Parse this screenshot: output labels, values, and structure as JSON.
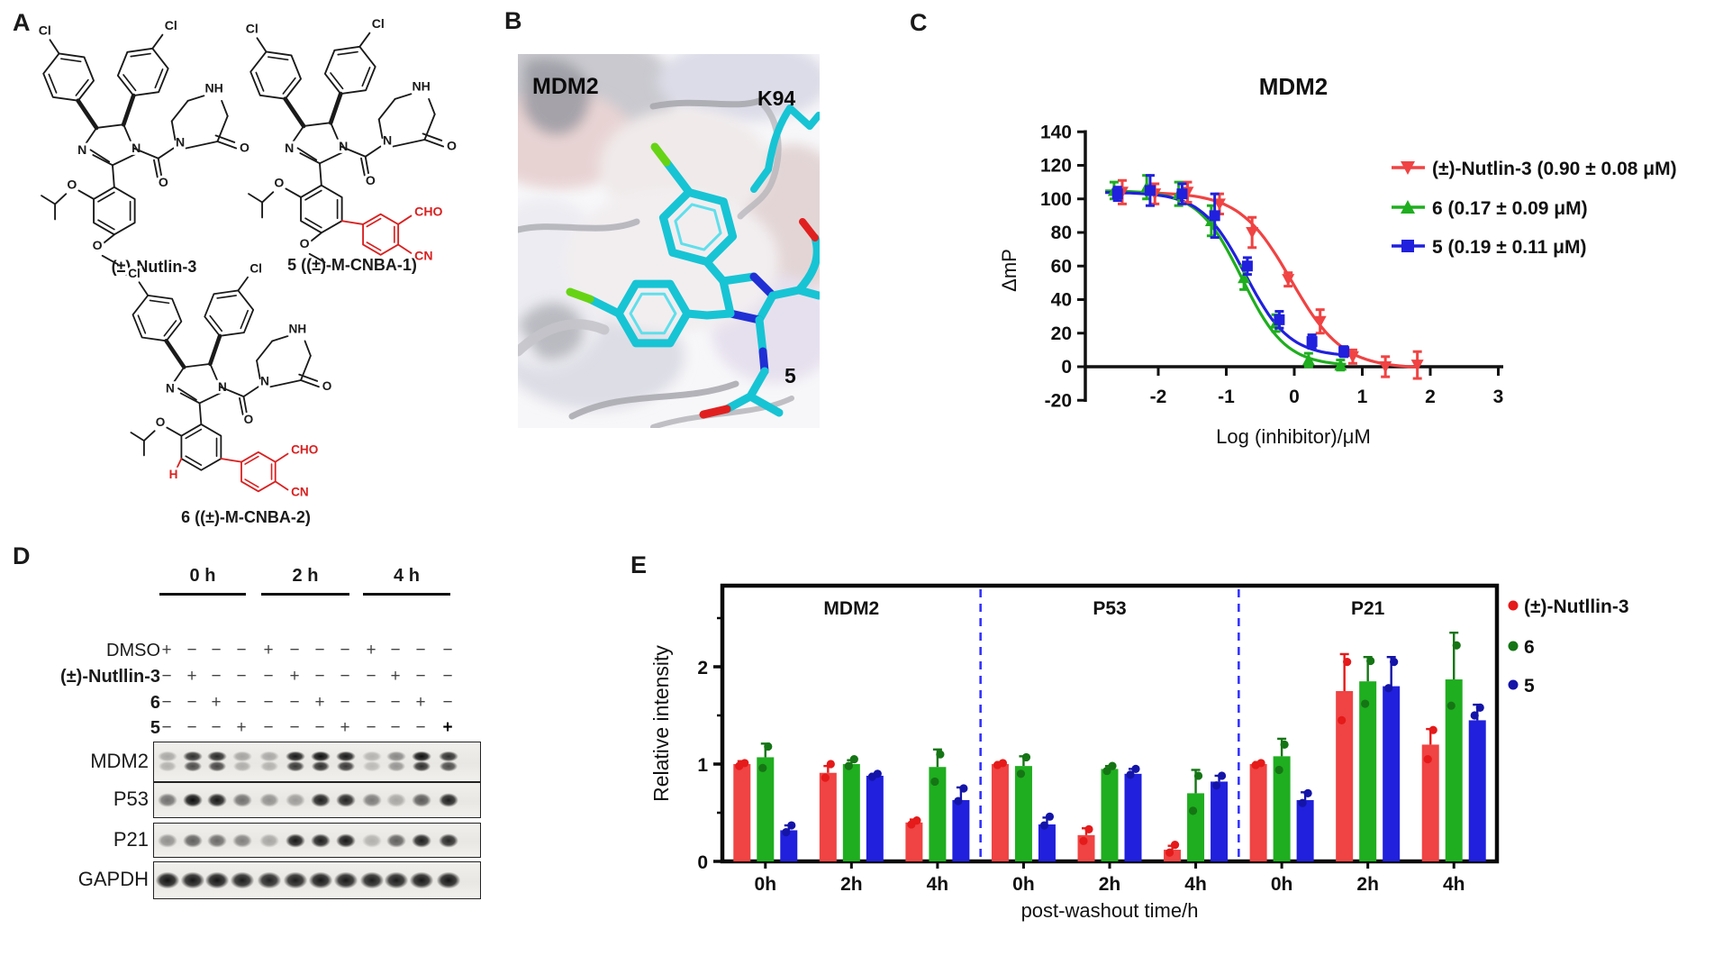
{
  "panel_labels": {
    "a": "A",
    "b": "B",
    "c": "C",
    "d": "D",
    "e": "E"
  },
  "panel_a": {
    "structures": [
      {
        "name": "(±)-Nutlin-3",
        "has_methoxy": true,
        "has_red_ring": false,
        "has_red_h": false
      },
      {
        "name": "5 ((±)-M-CNBA-1)",
        "has_methoxy": true,
        "has_red_ring": true,
        "has_red_h": false
      },
      {
        "name": "6 ((±)-M-CNBA-2)",
        "has_methoxy": false,
        "has_red_ring": true,
        "has_red_h": true
      }
    ],
    "atoms": {
      "cl": "Cl",
      "nh": "NH",
      "n": "N",
      "o": "O",
      "cho": "CHO",
      "cn": "CN",
      "h": "H"
    },
    "bond_color": "#1a1a1a",
    "red_color": "#D92121"
  },
  "panel_b": {
    "protein_label": "MDM2",
    "residue_label": "K94",
    "ligand_label": "5",
    "ligand_color": "#17c4d4",
    "chlorine_color": "#66d414",
    "nitrogen_color": "#1f2fd4",
    "oxygen_color": "#e02020"
  },
  "panel_d": {
    "time_groups": [
      "0 h",
      "2 h",
      "4 h"
    ],
    "treatments": [
      {
        "label": "DMSO",
        "bold": false,
        "lanes": [
          "+",
          "−",
          "−",
          "−",
          "+",
          "−",
          "−",
          "−",
          "+",
          "−",
          "−",
          "−"
        ]
      },
      {
        "label": "(±)-Nutllin-3",
        "bold": true,
        "lanes": [
          "−",
          "+",
          "−",
          "−",
          "−",
          "+",
          "−",
          "−",
          "−",
          "+",
          "−",
          "−"
        ]
      },
      {
        "label": "6",
        "bold": true,
        "lanes": [
          "−",
          "−",
          "+",
          "−",
          "−",
          "−",
          "+",
          "−",
          "−",
          "−",
          "+",
          "−"
        ]
      },
      {
        "label": "5",
        "bold": true,
        "lanes": [
          "−",
          "−",
          "−",
          "+",
          "−",
          "−",
          "−",
          "+",
          "−",
          "−",
          "−",
          "+"
        ]
      }
    ],
    "blots": [
      {
        "label": "MDM2",
        "double_band": true,
        "intensities": [
          0.3,
          0.85,
          0.88,
          0.32,
          0.3,
          0.95,
          1.0,
          0.95,
          0.25,
          0.45,
          1.0,
          0.85
        ]
      },
      {
        "label": "P53",
        "double_band": false,
        "intensities": [
          0.55,
          1.0,
          0.95,
          0.55,
          0.4,
          0.35,
          0.92,
          0.9,
          0.5,
          0.3,
          0.65,
          0.92
        ]
      },
      {
        "label": "P21",
        "double_band": false,
        "intensities": [
          0.4,
          0.62,
          0.58,
          0.48,
          0.3,
          0.95,
          0.93,
          0.95,
          0.25,
          0.62,
          0.92,
          0.88
        ]
      },
      {
        "label": "GAPDH",
        "double_band": false,
        "intensities": [
          0.97,
          0.95,
          0.96,
          0.93,
          0.9,
          0.92,
          0.95,
          0.94,
          0.92,
          0.93,
          0.95,
          0.96
        ]
      }
    ]
  },
  "chart_data": [
    {
      "panel": "C",
      "type": "line",
      "title": "MDM2",
      "xlabel": "Log (inhibitor)/μM",
      "ylabel": "ΔmP",
      "xlim": [
        -3.05,
        3.05
      ],
      "ylim": [
        -20,
        140
      ],
      "xticks": [
        -2,
        -1,
        0,
        1,
        2,
        3
      ],
      "yticks": [
        -20,
        0,
        20,
        40,
        60,
        80,
        100,
        120,
        140
      ],
      "grid": false,
      "legend_position": "right",
      "series": [
        {
          "name": "(±)-Nutlin-3 (0.90 ± 0.08 μM)",
          "color": "#F04343",
          "marker": "triangle-down",
          "x": [
            -2.53,
            -2.05,
            -1.57,
            -1.1,
            -0.62,
            -0.09,
            0.38,
            0.86,
            1.34,
            1.81
          ],
          "y": [
            104,
            103,
            104,
            97,
            80,
            52,
            27,
            6,
            0,
            1
          ],
          "err": [
            7,
            6,
            6,
            6,
            9,
            4,
            7,
            4,
            6,
            8
          ],
          "fit": {
            "top": 104,
            "bottom": -1,
            "logIC50": -0.046,
            "hill": 1.15,
            "xend": 1.9
          }
        },
        {
          "name": "6 (0.17 ± 0.09 μM)",
          "color": "#1FAE1F",
          "marker": "triangle-up",
          "x": [
            -2.65,
            -2.17,
            -1.7,
            -1.22,
            -0.74,
            -0.27,
            0.21,
            0.68
          ],
          "y": [
            105,
            107,
            103,
            87,
            53,
            26,
            4,
            1
          ],
          "err": [
            5,
            7,
            7,
            9,
            7,
            5,
            4,
            3
          ],
          "fit": {
            "top": 105,
            "bottom": 0.5,
            "logIC50": -0.77,
            "hill": 1.35,
            "xend": 0.8
          }
        },
        {
          "name": "5 (0.19 ± 0.11 μM)",
          "color": "#2020DD",
          "marker": "square",
          "x": [
            -2.6,
            -2.12,
            -1.65,
            -1.17,
            -0.69,
            -0.22,
            0.26,
            0.73
          ],
          "y": [
            103,
            105,
            103,
            90,
            60,
            28,
            15,
            9
          ],
          "err": [
            4,
            9,
            6,
            13,
            5,
            5,
            4,
            3
          ],
          "fit": {
            "top": 104,
            "bottom": 6,
            "logIC50": -0.72,
            "hill": 1.35,
            "xend": 0.85
          }
        }
      ]
    },
    {
      "panel": "E",
      "type": "bar",
      "ylabel": "Relative intensity",
      "xlabel": "post-washout time/h",
      "ylim": [
        0,
        2.83
      ],
      "yticks": [
        0,
        1,
        2
      ],
      "minor_yticks": [
        0.5,
        1.5,
        2.5
      ],
      "groups": [
        "MDM2",
        "P53",
        "P21"
      ],
      "timepoints": [
        "0h",
        "2h",
        "4h"
      ],
      "separator_color": "#3333FF",
      "legend": [
        "(±)-Nutllin-3",
        "6",
        "5"
      ],
      "series": [
        {
          "name": "(±)-Nutllin-3",
          "color": "#F04343",
          "dot_color": "#E51A1A",
          "values": [
            1.0,
            0.91,
            0.4,
            1.0,
            0.27,
            0.12,
            1.0,
            1.75,
            1.2
          ],
          "errors": [
            0.03,
            0.07,
            0.03,
            0.02,
            0.07,
            0.04,
            0.02,
            0.38,
            0.16
          ],
          "points": [
            [
              0.98,
              1.01
            ],
            [
              0.86,
              1.0
            ],
            [
              0.38,
              0.42
            ],
            [
              0.99,
              1.01
            ],
            [
              0.21,
              0.33
            ],
            [
              0.09,
              0.17
            ],
            [
              0.99,
              1.01
            ],
            [
              1.45,
              2.05
            ],
            [
              1.05,
              1.35
            ]
          ]
        },
        {
          "name": "6",
          "color": "#1FAE1F",
          "dot_color": "#157515",
          "values": [
            1.07,
            1.0,
            0.97,
            0.98,
            0.95,
            0.7,
            1.08,
            1.85,
            1.87
          ],
          "errors": [
            0.14,
            0.04,
            0.18,
            0.1,
            0.03,
            0.24,
            0.18,
            0.25,
            0.48
          ],
          "points": [
            [
              0.96,
              1.18
            ],
            [
              0.98,
              1.05
            ],
            [
              0.82,
              1.1
            ],
            [
              0.9,
              1.07
            ],
            [
              0.93,
              0.98
            ],
            [
              0.52,
              0.88
            ],
            [
              0.94,
              1.2
            ],
            [
              1.62,
              2.06
            ],
            [
              1.6,
              2.22
            ]
          ]
        },
        {
          "name": "5",
          "color": "#2020DD",
          "dot_color": "#1414A8",
          "values": [
            0.32,
            0.88,
            0.63,
            0.38,
            0.9,
            0.82,
            0.63,
            1.8,
            1.45
          ],
          "errors": [
            0.05,
            0.02,
            0.13,
            0.07,
            0.05,
            0.06,
            0.08,
            0.3,
            0.16
          ],
          "points": [
            [
              0.3,
              0.37
            ],
            [
              0.87,
              0.9
            ],
            [
              0.62,
              0.75
            ],
            [
              0.37,
              0.46
            ],
            [
              0.89,
              0.95
            ],
            [
              0.78,
              0.88
            ],
            [
              0.6,
              0.7
            ],
            [
              1.78,
              2.05
            ],
            [
              1.5,
              1.58
            ]
          ]
        }
      ]
    }
  ]
}
